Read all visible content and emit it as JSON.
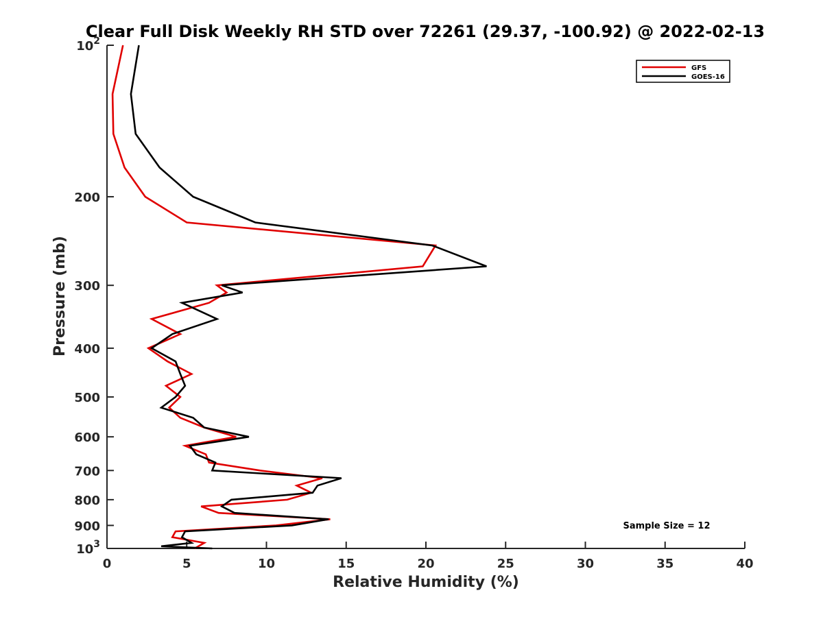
{
  "chart_data": {
    "type": "line",
    "title": "Clear Full Disk Weekly RH STD over 72261 (29.37, -100.92) @ 2022-02-13",
    "xlabel": "Relative Humidity (%)",
    "ylabel": "Pressure (mb)",
    "xlim": [
      0,
      40
    ],
    "ylim": [
      100,
      1000
    ],
    "yscale": "log",
    "y_reversed": true,
    "grid": false,
    "legend_position": "top-right",
    "x_ticks": [
      0,
      5,
      10,
      15,
      20,
      25,
      30,
      35,
      40
    ],
    "y_ticks": [
      {
        "value": 100,
        "base": "10",
        "exp": "2"
      },
      {
        "value": 200,
        "label": "200"
      },
      {
        "value": 300,
        "label": "300"
      },
      {
        "value": 400,
        "label": "400"
      },
      {
        "value": 500,
        "label": "500"
      },
      {
        "value": 600,
        "label": "600"
      },
      {
        "value": 700,
        "label": "700"
      },
      {
        "value": 800,
        "label": "800"
      },
      {
        "value": 900,
        "label": "900"
      },
      {
        "value": 1000,
        "base": "10",
        "exp": "3"
      }
    ],
    "annotation": "Sample Size = 12",
    "series": [
      {
        "name": "GFS",
        "color": "#e00000",
        "points": [
          [
            1.0,
            100
          ],
          [
            0.35,
            125
          ],
          [
            0.4,
            150
          ],
          [
            1.1,
            175
          ],
          [
            2.4,
            200
          ],
          [
            5.0,
            225
          ],
          [
            20.6,
            250
          ],
          [
            19.8,
            275
          ],
          [
            6.9,
            300
          ],
          [
            7.5,
            310
          ],
          [
            6.4,
            325
          ],
          [
            2.8,
            350
          ],
          [
            4.6,
            375
          ],
          [
            2.6,
            400
          ],
          [
            3.8,
            425
          ],
          [
            5.3,
            450
          ],
          [
            3.7,
            475
          ],
          [
            4.6,
            500
          ],
          [
            3.9,
            525
          ],
          [
            4.6,
            550
          ],
          [
            6.1,
            575
          ],
          [
            8.1,
            600
          ],
          [
            4.9,
            625
          ],
          [
            6.2,
            650
          ],
          [
            6.4,
            675
          ],
          [
            9.6,
            700
          ],
          [
            13.5,
            725
          ],
          [
            11.9,
            750
          ],
          [
            12.8,
            775
          ],
          [
            11.3,
            800
          ],
          [
            5.9,
            825
          ],
          [
            7.0,
            850
          ],
          [
            14.0,
            875
          ],
          [
            10.6,
            900
          ],
          [
            4.3,
            925
          ],
          [
            4.1,
            950
          ],
          [
            6.1,
            975
          ],
          [
            5.5,
            1000
          ]
        ]
      },
      {
        "name": "GOES-16",
        "color": "#000000",
        "points": [
          [
            2.0,
            100
          ],
          [
            1.5,
            125
          ],
          [
            1.8,
            150
          ],
          [
            3.3,
            175
          ],
          [
            5.4,
            200
          ],
          [
            7.8,
            215
          ],
          [
            9.3,
            225
          ],
          [
            20.4,
            250
          ],
          [
            23.8,
            275
          ],
          [
            7.2,
            300
          ],
          [
            8.5,
            310
          ],
          [
            4.7,
            325
          ],
          [
            6.9,
            350
          ],
          [
            4.1,
            375
          ],
          [
            2.8,
            400
          ],
          [
            4.3,
            425
          ],
          [
            4.6,
            450
          ],
          [
            4.9,
            475
          ],
          [
            4.3,
            500
          ],
          [
            3.4,
            525
          ],
          [
            5.4,
            550
          ],
          [
            6.1,
            575
          ],
          [
            8.9,
            600
          ],
          [
            5.2,
            625
          ],
          [
            5.6,
            650
          ],
          [
            6.8,
            675
          ],
          [
            6.6,
            700
          ],
          [
            14.7,
            725
          ],
          [
            13.2,
            750
          ],
          [
            12.9,
            775
          ],
          [
            7.8,
            800
          ],
          [
            7.2,
            825
          ],
          [
            8.0,
            850
          ],
          [
            13.9,
            875
          ],
          [
            11.6,
            900
          ],
          [
            4.9,
            925
          ],
          [
            4.7,
            950
          ],
          [
            5.3,
            975
          ],
          [
            3.4,
            990
          ],
          [
            6.6,
            1000
          ]
        ]
      }
    ]
  }
}
